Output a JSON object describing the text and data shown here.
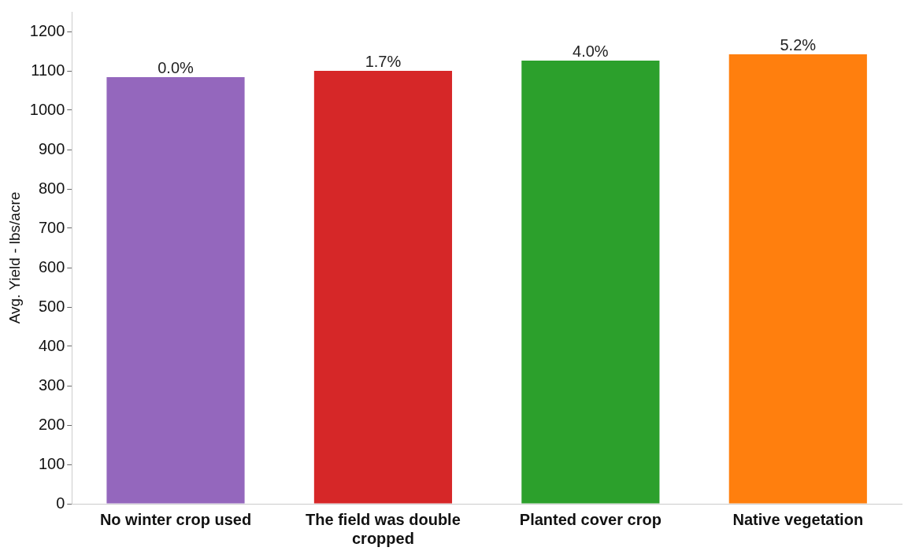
{
  "chart_data": {
    "type": "bar",
    "ylabel": "Avg. Yield - lbs/acre",
    "categories": [
      "No winter crop used",
      "The field was double cropped",
      "Planted cover crop",
      "Native vegetation"
    ],
    "values": [
      1084,
      1100,
      1126,
      1142
    ],
    "colors": [
      "#9467bd",
      "#d62728",
      "#2ca02c",
      "#ff7f0e"
    ],
    "annotations": [
      {
        "text": "0.0%",
        "x": "No winter crop used",
        "y": 1084
      },
      {
        "text": "1.7%",
        "x": "The field was double cropped",
        "y": 1100
      },
      {
        "text": "4.0%",
        "x": "Planted cover crop",
        "y": 1126
      },
      {
        "text": "5.2%",
        "x": "Native vegetation",
        "y": 1142
      }
    ],
    "ylim": [
      0,
      1250
    ],
    "yticks": [
      0,
      100,
      200,
      300,
      400,
      500,
      600,
      700,
      800,
      900,
      1000,
      1100,
      1200
    ],
    "grid": false,
    "legend": false
  }
}
